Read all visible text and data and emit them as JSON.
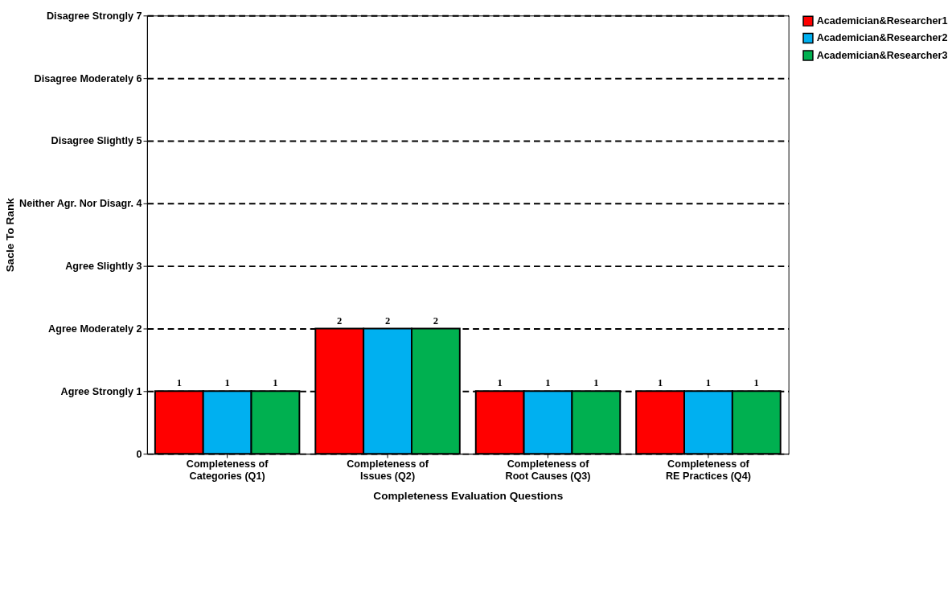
{
  "chart_data": {
    "type": "bar",
    "xlabel": "Completeness Evaluation Questions",
    "ylabel": "Sacle To Rank",
    "categories": [
      "Completeness of Categories (Q1)",
      "Completeness of Issues (Q2)",
      "Completeness of Root Causes (Q3)",
      "Completeness of RE Practices (Q4)"
    ],
    "series": [
      {
        "name": "Academician&Researcher1",
        "color": "#ff0000",
        "values": [
          1,
          2,
          1,
          1
        ]
      },
      {
        "name": "Academician&Researcher2",
        "color": "#00b0f0",
        "values": [
          1,
          2,
          1,
          1
        ]
      },
      {
        "name": "Academician&Researcher3",
        "color": "#00b050",
        "values": [
          1,
          2,
          1,
          1
        ]
      }
    ],
    "ylim": [
      0,
      7
    ],
    "yticks": [
      0,
      {
        "value": 1,
        "label": "Agree Strongly 1"
      },
      {
        "value": 2,
        "label": "Agree Moderately 2"
      },
      {
        "value": 3,
        "label": "Agree Slightly 3"
      },
      {
        "value": 4,
        "label": "Neither Agr. Nor Disagr. 4"
      },
      {
        "value": 5,
        "label": "Disagree Slightly 5"
      },
      {
        "value": 6,
        "label": "Disagree Moderately 6"
      },
      {
        "value": 7,
        "label": "Disagree Strongly 7"
      }
    ],
    "grid": "y",
    "line_style": "dashed",
    "legend": "right",
    "data_labels": true
  }
}
